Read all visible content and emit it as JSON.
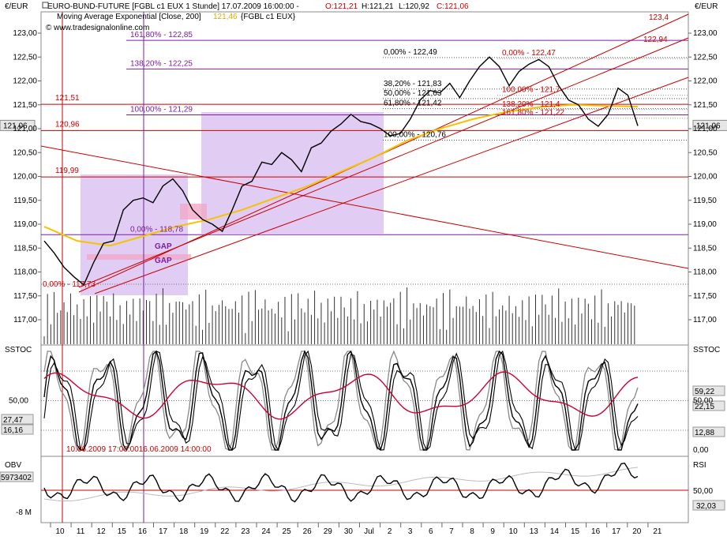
{
  "header": {
    "currency_left": "€/EUR",
    "currency_right": "€/EUR",
    "instrument": "EURO-BUND-FUTURE [FGBL c1 EUX  1 Stunde] 17.07.2009 16:00:00 -",
    "ohlc_o": "O:121,21",
    "ohlc_h": "H:121,21",
    "ohlc_l": "L:120,92",
    "ohlc_c": "C:121,06",
    "ma_label": "Moving Average Exponential [Close, 200]",
    "ma_value": "121,46",
    "ma_source": "{FGBL c1 EUX}",
    "copyright": "© www.tradesignalonline.com",
    "colors": {
      "up": "#000000",
      "red": "#cc0000",
      "ma": "#f5c400",
      "fib": "#7a1fa2",
      "zone": "#d9bff0"
    }
  },
  "chart_data": [
    {
      "type": "line",
      "name": "price",
      "ylim": [
        116.6,
        123.5
      ],
      "yticks": [
        "123,00",
        "122,50",
        "122,00",
        "121,50",
        "121,00",
        "120,50",
        "120,00",
        "119,50",
        "119,00",
        "118,50",
        "118,00",
        "117,50",
        "117,00"
      ],
      "current_price_tag": "121,06",
      "x_labels": [
        "10",
        "11",
        "12",
        "15",
        "16",
        "17",
        "18",
        "19",
        "22",
        "23",
        "24",
        "25",
        "26",
        "29",
        "30",
        "Jul",
        "2",
        "3",
        "6",
        "7",
        "8",
        "9",
        "10",
        "13",
        "14",
        "15",
        "16",
        "17",
        "20",
        "21"
      ],
      "close_path_points": [
        [
          0,
          118.65
        ],
        [
          3,
          118.4
        ],
        [
          6,
          118.1
        ],
        [
          9,
          117.9
        ],
        [
          12,
          117.73
        ],
        [
          15,
          118.2
        ],
        [
          18,
          118.6
        ],
        [
          21,
          118.65
        ],
        [
          24,
          119.3
        ],
        [
          27,
          119.5
        ],
        [
          30,
          119.55
        ],
        [
          33,
          119.45
        ],
        [
          36,
          119.8
        ],
        [
          39,
          119.95
        ],
        [
          42,
          119.7
        ],
        [
          45,
          119.3
        ],
        [
          48,
          119.1
        ],
        [
          51,
          119.0
        ],
        [
          54,
          118.85
        ],
        [
          57,
          119.3
        ],
        [
          60,
          119.8
        ],
        [
          63,
          119.9
        ],
        [
          66,
          120.3
        ],
        [
          69,
          120.25
        ],
        [
          72,
          120.5
        ],
        [
          75,
          120.35
        ],
        [
          78,
          120.1
        ],
        [
          81,
          120.6
        ],
        [
          84,
          120.7
        ],
        [
          87,
          120.95
        ],
        [
          90,
          121.1
        ],
        [
          93,
          121.3
        ],
        [
          96,
          121.15
        ],
        [
          99,
          121.1
        ],
        [
          102,
          121.0
        ],
        [
          105,
          120.85
        ],
        [
          108,
          120.9
        ],
        [
          111,
          121.2
        ],
        [
          114,
          121.6
        ],
        [
          117,
          121.8
        ],
        [
          120,
          121.75
        ],
        [
          123,
          121.95
        ],
        [
          126,
          121.65
        ],
        [
          129,
          122.0
        ],
        [
          132,
          122.3
        ],
        [
          135,
          122.5
        ],
        [
          138,
          122.3
        ],
        [
          141,
          121.9
        ],
        [
          144,
          122.2
        ],
        [
          147,
          122.35
        ],
        [
          150,
          122.45
        ],
        [
          153,
          122.3
        ],
        [
          156,
          121.9
        ],
        [
          159,
          121.6
        ],
        [
          162,
          121.5
        ],
        [
          165,
          121.2
        ],
        [
          168,
          121.05
        ],
        [
          171,
          121.3
        ],
        [
          174,
          121.85
        ],
        [
          177,
          121.7
        ],
        [
          180,
          121.06
        ]
      ],
      "ema200_points": [
        [
          0,
          118.95
        ],
        [
          10,
          118.65
        ],
        [
          20,
          118.55
        ],
        [
          30,
          118.75
        ],
        [
          40,
          118.95
        ],
        [
          50,
          119.1
        ],
        [
          60,
          119.3
        ],
        [
          70,
          119.55
        ],
        [
          80,
          119.8
        ],
        [
          90,
          120.1
        ],
        [
          100,
          120.4
        ],
        [
          110,
          120.75
        ],
        [
          120,
          121.0
        ],
        [
          130,
          121.2
        ],
        [
          140,
          121.35
        ],
        [
          150,
          121.45
        ],
        [
          160,
          121.5
        ],
        [
          170,
          121.48
        ],
        [
          180,
          121.46
        ]
      ],
      "ema200_last": "121,46",
      "volume_note": "volume bars along bottom of price pane"
    },
    {
      "type": "line",
      "name": "SSTOC",
      "ylim": [
        -5,
        105
      ],
      "yticks": [
        "50,00",
        "0,00"
      ],
      "right_tags": [
        "59,22",
        "22,15",
        "12,88"
      ],
      "left_tags": [
        "27,47",
        "16,16"
      ],
      "date_range": "10.06.2009 17:00:0016.06.2009 14:00:00"
    },
    {
      "type": "line",
      "name": "OBV / RSI",
      "left_tags": [
        "5973402",
        "-8 M"
      ],
      "right_tags": [
        "50,00",
        "32,03"
      ],
      "rsi_ytick": "50,00"
    }
  ],
  "levels": {
    "horizontal_red": [
      {
        "label": "121,51",
        "value": 121.51
      },
      {
        "label": "120,96",
        "value": 120.96
      },
      {
        "label": "119,99",
        "value": 119.99
      }
    ],
    "fib_extensions": [
      {
        "label": "161,80% - 122,85",
        "value": 122.85
      },
      {
        "label": "138,20% - 122,25",
        "value": 122.25
      },
      {
        "label": "100,00% - 121,29",
        "value": 121.29
      }
    ],
    "fib_retr": [
      {
        "label": "0,00% - 122,49",
        "value": 122.49
      },
      {
        "label": "38,20% - 121,83",
        "value": 121.83
      },
      {
        "label": "50,00% - 121,63",
        "value": 121.63
      },
      {
        "label": "61,80% - 121,42",
        "value": 121.42
      },
      {
        "label": "100,00% - 120,76",
        "value": 120.76
      }
    ],
    "fib_red": [
      {
        "label": "0,00% - 122,47",
        "value": 122.47
      },
      {
        "label": "100,00% - 121,7",
        "value": 121.7
      },
      {
        "label": "138,20% - 121,4",
        "value": 121.4
      },
      {
        "label": "161,80% - 121,22",
        "value": 121.22
      }
    ],
    "low_labels": [
      {
        "label": "0,00% - 118,78",
        "value": 118.78
      },
      {
        "label": "0,00% - 117,73",
        "value": 117.73
      }
    ],
    "trend_labels": [
      "123,4",
      "122,94"
    ],
    "gap_labels": [
      "GAP",
      "GAP"
    ]
  }
}
